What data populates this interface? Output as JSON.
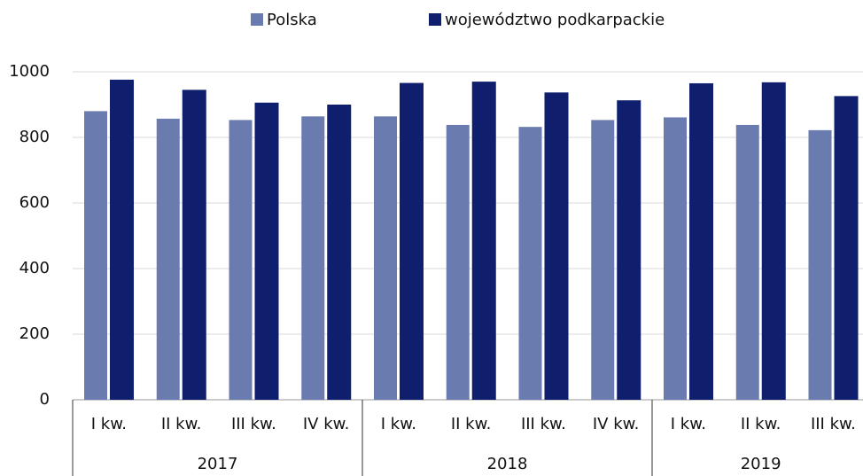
{
  "chart_data": {
    "type": "bar",
    "groups": [
      {
        "name": "2017",
        "categories": [
          "I kw.",
          "II kw.",
          "III kw.",
          "IV kw."
        ]
      },
      {
        "name": "2018",
        "categories": [
          "I kw.",
          "II kw.",
          "III kw.",
          "IV kw."
        ]
      },
      {
        "name": "2019",
        "categories": [
          "I kw.",
          "II kw.",
          "III kw."
        ]
      }
    ],
    "series": [
      {
        "name": "Polska",
        "color": "#6a7bb0",
        "values": [
          880,
          857,
          853,
          864,
          864,
          838,
          832,
          853,
          861,
          838,
          822
        ]
      },
      {
        "name": "województwo podkarpackie",
        "color": "#0f1f6e",
        "values": [
          976,
          945,
          906,
          900,
          966,
          970,
          937,
          913,
          965,
          968,
          926
        ]
      }
    ],
    "ylim": [
      0,
      1000
    ],
    "yticks": [
      0,
      200,
      400,
      600,
      800,
      1000
    ],
    "grid": true,
    "legend": "top"
  }
}
